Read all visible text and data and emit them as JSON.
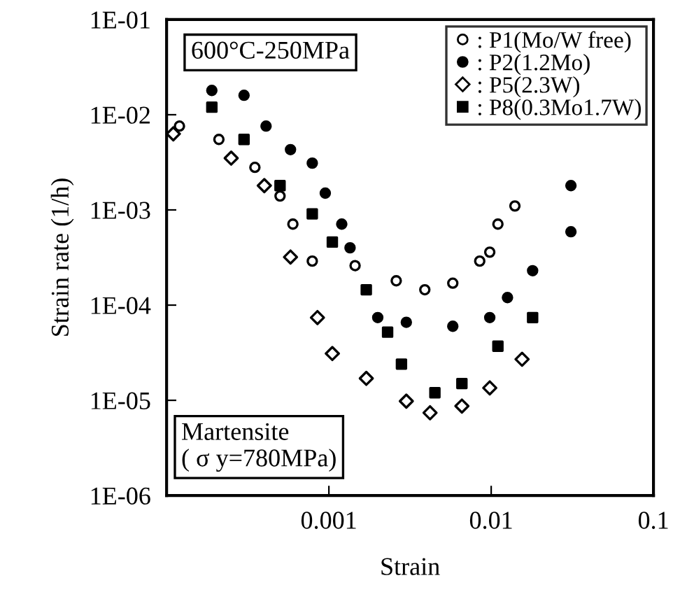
{
  "chart_data": {
    "type": "scatter",
    "xlabel": "Strain",
    "ylabel": "Strain rate (1/h)",
    "log": "xy",
    "xlim": [
      0.0001,
      0.1
    ],
    "xticks": [
      0.001,
      0.01,
      0.1
    ],
    "ylim": [
      1e-06,
      0.1
    ],
    "yticks": [
      {
        "value": 1e-06,
        "label": "1E-06"
      },
      {
        "value": 1e-05,
        "label": "1E-05"
      },
      {
        "value": 0.0001,
        "label": "1E-04"
      },
      {
        "value": 0.001,
        "label": "1E-03"
      },
      {
        "value": 0.01,
        "label": "1E-02"
      },
      {
        "value": 0.1,
        "label": "1E-01"
      }
    ],
    "grid": false,
    "legend": "top right",
    "annotations": [
      "600°C-250MPa",
      "Martensite\n( σ y=780MPa)"
    ],
    "series": [
      {
        "name": ": P1(Mo/W free)",
        "color": "#000000",
        "marker": "circle",
        "x": [
          0.00012,
          0.00021,
          0.00035,
          0.0005,
          0.0006,
          0.00079,
          0.00145,
          0.0026,
          0.0039,
          0.0058,
          0.0085,
          0.0098,
          0.011,
          0.014
        ],
        "values": [
          0.0076,
          0.0055,
          0.0028,
          0.0014,
          0.00071,
          0.00029,
          0.00026,
          0.00018,
          0.000145,
          0.00017,
          0.00029,
          0.00036,
          0.00071,
          0.0011
        ]
      },
      {
        "name": ": P2(1.2Mo)",
        "color": "#000000",
        "marker": "circle",
        "x": [
          0.00019,
          0.0003,
          0.00041,
          0.00058,
          0.00079,
          0.00095,
          0.0012,
          0.00135,
          0.002,
          0.003,
          0.0058,
          0.0098,
          0.0126,
          0.018,
          0.031,
          0.031
        ],
        "values": [
          0.018,
          0.016,
          0.0076,
          0.0043,
          0.0031,
          0.0015,
          0.00071,
          0.0004,
          7.4e-05,
          6.6e-05,
          6e-05,
          7.4e-05,
          0.00012,
          0.00023,
          0.0018,
          0.00059
        ]
      },
      {
        "name": ": P5(2.3W)",
        "color": "#000000",
        "marker": "diamond",
        "x": [
          0.00011,
          0.00025,
          0.0004,
          0.00058,
          0.00085,
          0.00105,
          0.0017,
          0.003,
          0.0042,
          0.0066,
          0.0098,
          0.0155
        ],
        "values": [
          0.0063,
          0.0035,
          0.0018,
          0.00032,
          7.4e-05,
          3.1e-05,
          1.7e-05,
          9.8e-06,
          7.4e-06,
          8.7e-06,
          1.35e-05,
          2.7e-05
        ]
      },
      {
        "name": ": P8(0.3Mo1.7W)",
        "color": "#000000",
        "marker": "square",
        "x": [
          0.00019,
          0.0003,
          0.0005,
          0.00079,
          0.00105,
          0.0017,
          0.0023,
          0.0028,
          0.0045,
          0.0066,
          0.011,
          0.018
        ],
        "values": [
          0.012,
          0.0055,
          0.0018,
          0.00091,
          0.00046,
          0.000145,
          5.2e-05,
          2.4e-05,
          1.2e-05,
          1.5e-05,
          3.7e-05,
          7.4e-05
        ]
      }
    ]
  }
}
